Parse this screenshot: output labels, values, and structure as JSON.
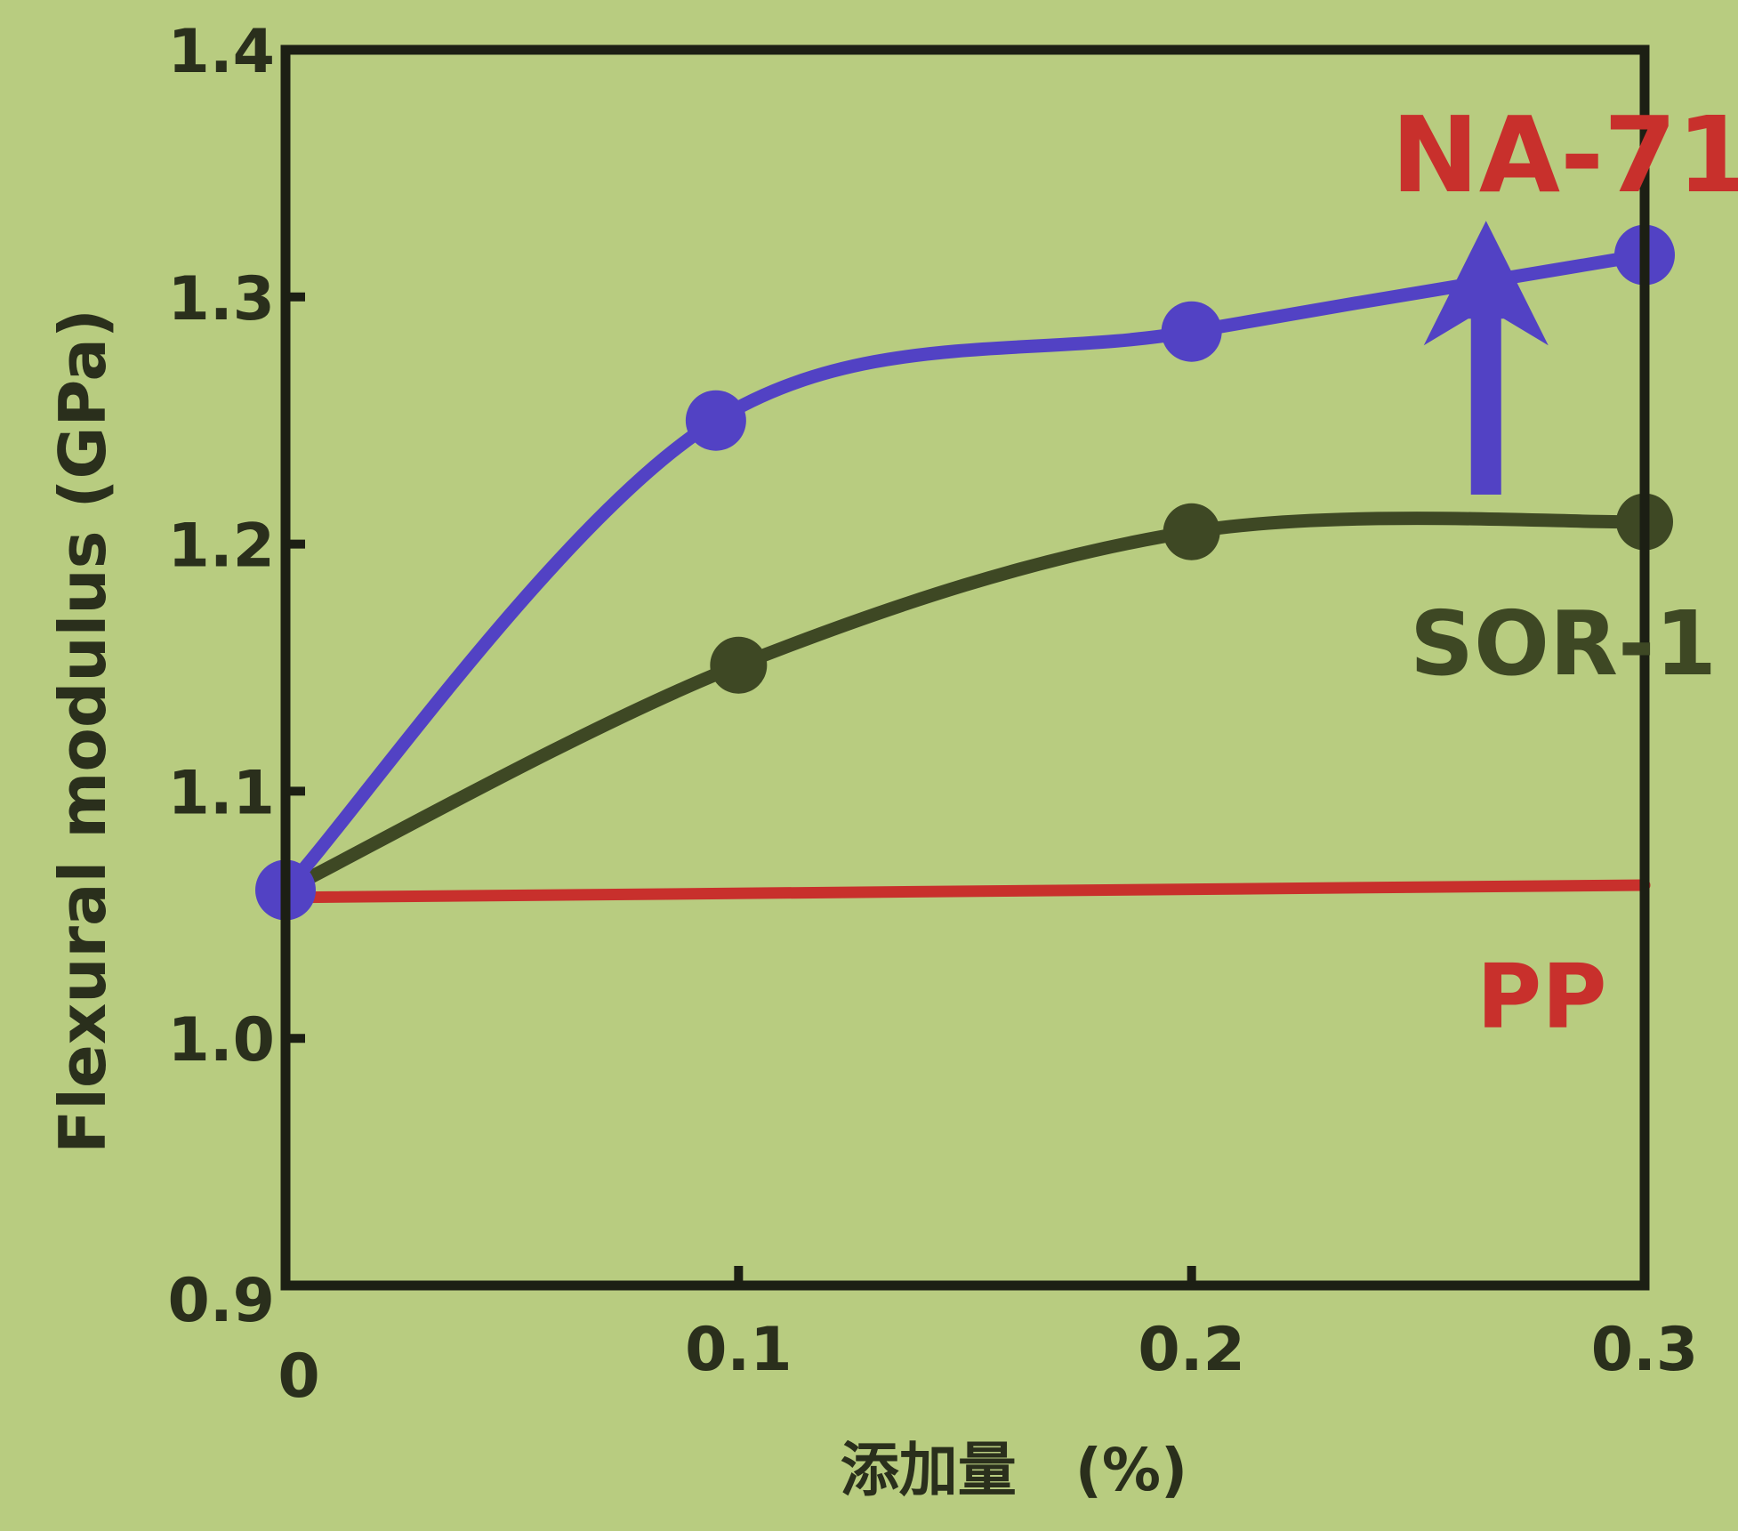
{
  "chart_data": {
    "type": "line",
    "xlabel": "添加量　(%)",
    "ylabel": "Flexural modulus (GPa)",
    "xlim": [
      0,
      0.3
    ],
    "ylim": [
      0.9,
      1.4
    ],
    "x_ticks": [
      "0",
      "0.1",
      "0.2",
      "0.3"
    ],
    "y_ticks": [
      "0.9",
      "1.0",
      "1.1",
      "1.2",
      "1.3",
      "1.4"
    ],
    "grid": false,
    "background_color": "#b8cc80",
    "series": [
      {
        "name": "NA-71",
        "color": "#5242c4",
        "label_color": "#c8302c",
        "smooth": true,
        "markers": true,
        "x": [
          0,
          0.095,
          0.2,
          0.3
        ],
        "y": [
          1.06,
          1.25,
          1.286,
          1.317
        ]
      },
      {
        "name": "SOR-1",
        "color": "#3e4824",
        "label_color": "#3e4824",
        "smooth": true,
        "markers": true,
        "x": [
          0,
          0.1,
          0.2,
          0.3
        ],
        "y": [
          1.06,
          1.151,
          1.205,
          1.209
        ]
      },
      {
        "name": "PP",
        "color": "#c8302c",
        "label_color": "#c8302c",
        "smooth": false,
        "markers": false,
        "x": [
          0,
          0.3
        ],
        "y": [
          1.057,
          1.062
        ]
      }
    ],
    "annotations": [
      {
        "type": "arrow",
        "color": "#5242c4",
        "x": 0.265,
        "y_from": 1.22,
        "y_to": 1.32
      }
    ]
  }
}
